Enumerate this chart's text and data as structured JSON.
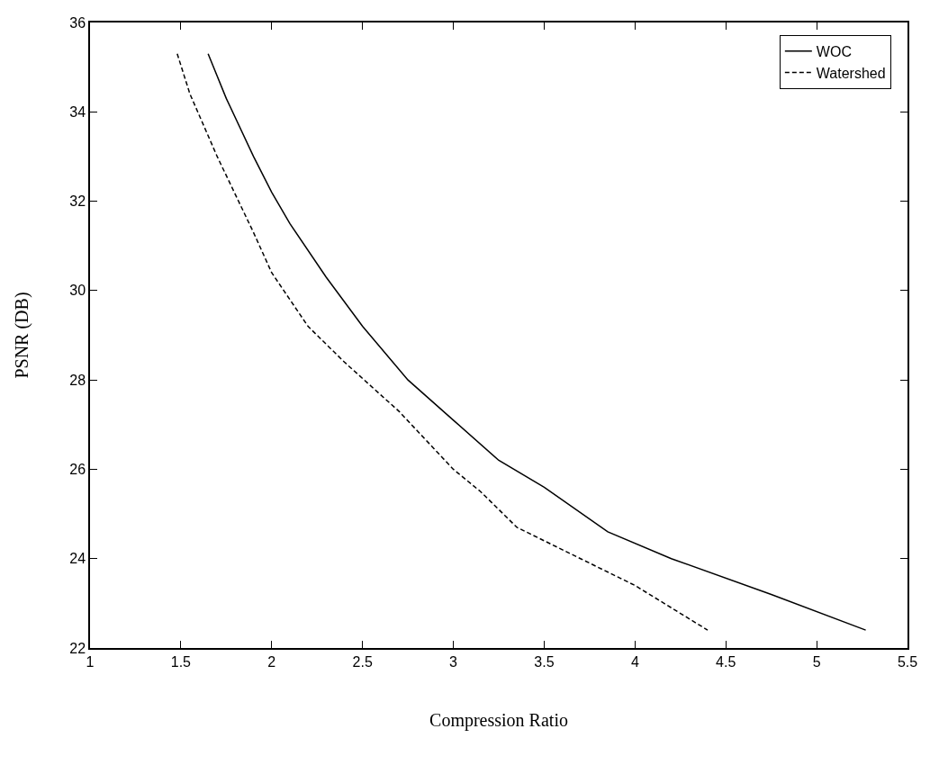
{
  "chart_data": {
    "type": "line",
    "xlabel": "Compression Ratio",
    "ylabel": "PSNR (DB)",
    "xlim": [
      1,
      5.5
    ],
    "xticks": [
      1,
      1.5,
      2,
      2.5,
      3,
      3.5,
      4,
      4.5,
      5,
      5.5
    ],
    "ylim": [
      22,
      36
    ],
    "yticks": [
      22,
      24,
      26,
      28,
      30,
      32,
      34,
      36
    ],
    "legend": "top right",
    "marker": "none",
    "series": [
      {
        "name": "WOC",
        "color": "#000000",
        "line_style": "solid",
        "x": [
          1.65,
          1.75,
          1.9,
          2.0,
          2.1,
          2.3,
          2.5,
          2.75,
          3.0,
          3.25,
          3.5,
          3.85,
          4.2,
          4.75,
          5.27
        ],
        "values": [
          35.3,
          34.3,
          33.0,
          32.2,
          31.5,
          30.3,
          29.2,
          28.0,
          27.1,
          26.2,
          25.6,
          24.6,
          24.0,
          23.2,
          22.4
        ]
      },
      {
        "name": "Watershed",
        "color": "#000000",
        "line_style": "dashed",
        "x": [
          1.48,
          1.55,
          1.7,
          1.9,
          2.0,
          2.2,
          2.4,
          2.7,
          3.0,
          3.15,
          3.35,
          3.7,
          4.0,
          4.4
        ],
        "values": [
          35.3,
          34.4,
          33.0,
          31.3,
          30.4,
          29.2,
          28.4,
          27.3,
          26.0,
          25.5,
          24.7,
          24.0,
          23.4,
          22.4
        ]
      }
    ]
  }
}
